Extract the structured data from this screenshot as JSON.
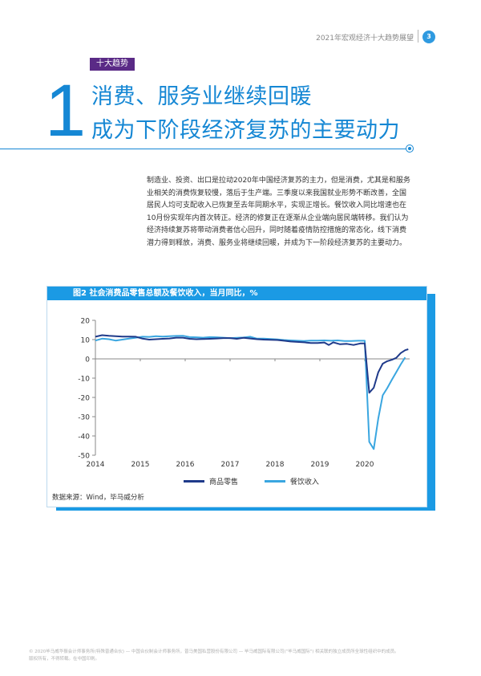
{
  "header": {
    "report_title": "2021年宏观经济十大趋势展望",
    "page_number": "3"
  },
  "section": {
    "tag": "十大趋势",
    "number": "1",
    "headline_line1": "消费、服务业继续回暖",
    "headline_line2": "成为下阶段经济复苏的主要动力"
  },
  "body_lines": [
    "制造业、投资、出口是拉动2020年中国经济复苏的主力，但是消费，尤其是和服务",
    "业相关的消费恢复较慢，落后于生产端。三季度以来我国就业形势不断改善，全国",
    "居民人均可支配收入已恢复至去年同期水平，实现正增长。餐饮收入同比增速也在",
    "10月份实现年内首次转正。经济的修复正在逐渐从企业端向居民端转移。我们认为",
    "经济持续复苏将带动消费者信心回升，同时随着疫情防控措施的常态化，线下消费",
    "潜力得到释放，消费、服务业将继续回暖，并成为下一阶段经济复苏的主要动力。"
  ],
  "figure": {
    "title": "图2  社会消费品零售总额及餐饮收入，当月同比，%",
    "source": "数据来源：Wind，毕马威分析"
  },
  "colors": {
    "accent_blue": "#1587d4",
    "tag_purple": "#5a2a86",
    "series_retail": "#1f3a8a",
    "series_catering": "#3aa6e0"
  },
  "chart_data": {
    "type": "line",
    "title": "图2  社会消费品零售总额及餐饮收入，当月同比，%",
    "xlabel": "",
    "ylabel": "",
    "x_ticks": [
      "2014",
      "2015",
      "2016",
      "2017",
      "2018",
      "2019",
      "2020"
    ],
    "xlim": [
      2014.0,
      2021.0
    ],
    "ylim": [
      -50,
      20
    ],
    "y_ticks": [
      20,
      10,
      0,
      -10,
      -20,
      -30,
      -40,
      -50
    ],
    "grid": false,
    "legend": "bottom",
    "series": [
      {
        "name": "商品零售",
        "color": "#1f3a8a",
        "points": [
          [
            2014.0,
            11.5
          ],
          [
            2014.15,
            12.3
          ],
          [
            2014.3,
            12.0
          ],
          [
            2014.45,
            11.8
          ],
          [
            2014.6,
            11.6
          ],
          [
            2014.75,
            11.6
          ],
          [
            2014.9,
            11.5
          ],
          [
            2015.05,
            10.5
          ],
          [
            2015.2,
            10.0
          ],
          [
            2015.35,
            10.2
          ],
          [
            2015.5,
            10.4
          ],
          [
            2015.65,
            10.6
          ],
          [
            2015.8,
            11.0
          ],
          [
            2015.95,
            11.0
          ],
          [
            2016.1,
            10.4
          ],
          [
            2016.25,
            10.2
          ],
          [
            2016.4,
            10.3
          ],
          [
            2016.55,
            10.4
          ],
          [
            2016.7,
            10.6
          ],
          [
            2016.85,
            10.8
          ],
          [
            2017.0,
            10.8
          ],
          [
            2017.15,
            10.4
          ],
          [
            2017.3,
            10.9
          ],
          [
            2017.45,
            10.6
          ],
          [
            2017.6,
            10.2
          ],
          [
            2017.75,
            10.0
          ],
          [
            2017.9,
            9.9
          ],
          [
            2018.05,
            9.8
          ],
          [
            2018.2,
            9.4
          ],
          [
            2018.35,
            9.0
          ],
          [
            2018.5,
            8.8
          ],
          [
            2018.65,
            8.6
          ],
          [
            2018.8,
            8.2
          ],
          [
            2018.95,
            8.2
          ],
          [
            2019.1,
            8.5
          ],
          [
            2019.2,
            7.2
          ],
          [
            2019.3,
            8.6
          ],
          [
            2019.45,
            7.6
          ],
          [
            2019.6,
            7.8
          ],
          [
            2019.75,
            7.2
          ],
          [
            2019.9,
            8.0
          ],
          [
            2020.0,
            8.0
          ],
          [
            2020.1,
            -17.6
          ],
          [
            2020.2,
            -15.0
          ],
          [
            2020.3,
            -7.0
          ],
          [
            2020.4,
            -2.5
          ],
          [
            2020.5,
            -1.2
          ],
          [
            2020.6,
            -0.5
          ],
          [
            2020.7,
            0.5
          ],
          [
            2020.8,
            3.0
          ],
          [
            2020.9,
            4.5
          ],
          [
            2020.97,
            5.0
          ]
        ]
      },
      {
        "name": "餐饮收入",
        "color": "#3aa6e0",
        "points": [
          [
            2014.0,
            9.5
          ],
          [
            2014.15,
            10.5
          ],
          [
            2014.3,
            10.2
          ],
          [
            2014.45,
            9.5
          ],
          [
            2014.6,
            10.0
          ],
          [
            2014.75,
            10.5
          ],
          [
            2014.9,
            11.0
          ],
          [
            2015.05,
            11.5
          ],
          [
            2015.2,
            11.4
          ],
          [
            2015.35,
            11.8
          ],
          [
            2015.5,
            11.6
          ],
          [
            2015.65,
            11.8
          ],
          [
            2015.8,
            11.9
          ],
          [
            2015.95,
            12.0
          ],
          [
            2016.1,
            11.3
          ],
          [
            2016.25,
            11.2
          ],
          [
            2016.4,
            11.0
          ],
          [
            2016.55,
            11.3
          ],
          [
            2016.7,
            11.2
          ],
          [
            2016.85,
            11.0
          ],
          [
            2017.0,
            10.8
          ],
          [
            2017.15,
            10.9
          ],
          [
            2017.3,
            11.1
          ],
          [
            2017.45,
            11.5
          ],
          [
            2017.6,
            10.5
          ],
          [
            2017.75,
            10.5
          ],
          [
            2017.9,
            10.3
          ],
          [
            2018.05,
            10.1
          ],
          [
            2018.2,
            9.8
          ],
          [
            2018.35,
            9.6
          ],
          [
            2018.5,
            9.4
          ],
          [
            2018.65,
            9.3
          ],
          [
            2018.8,
            9.5
          ],
          [
            2018.95,
            9.5
          ],
          [
            2019.1,
            9.6
          ],
          [
            2019.25,
            9.4
          ],
          [
            2019.4,
            9.6
          ],
          [
            2019.55,
            9.3
          ],
          [
            2019.7,
            9.3
          ],
          [
            2019.85,
            9.4
          ],
          [
            2020.0,
            9.4
          ],
          [
            2020.1,
            -43.1
          ],
          [
            2020.2,
            -46.8
          ],
          [
            2020.3,
            -31.1
          ],
          [
            2020.4,
            -18.9
          ],
          [
            2020.5,
            -15.2
          ],
          [
            2020.6,
            -11.0
          ],
          [
            2020.7,
            -7.0
          ],
          [
            2020.8,
            -2.9
          ],
          [
            2020.9,
            0.8
          ]
        ]
      }
    ]
  },
  "footer": {
    "line1": "© 2020毕马威华振会计师事务所(特殊普通合伙) — 中国合伙制会计师事务所，普马美国私营股份有限公司 — 毕马威国际有限公司(\"毕马威国际\") 相关联的独立成员所全球性组织中的成员。",
    "line2": "版权所有，不得转载。在中国印刷。"
  }
}
